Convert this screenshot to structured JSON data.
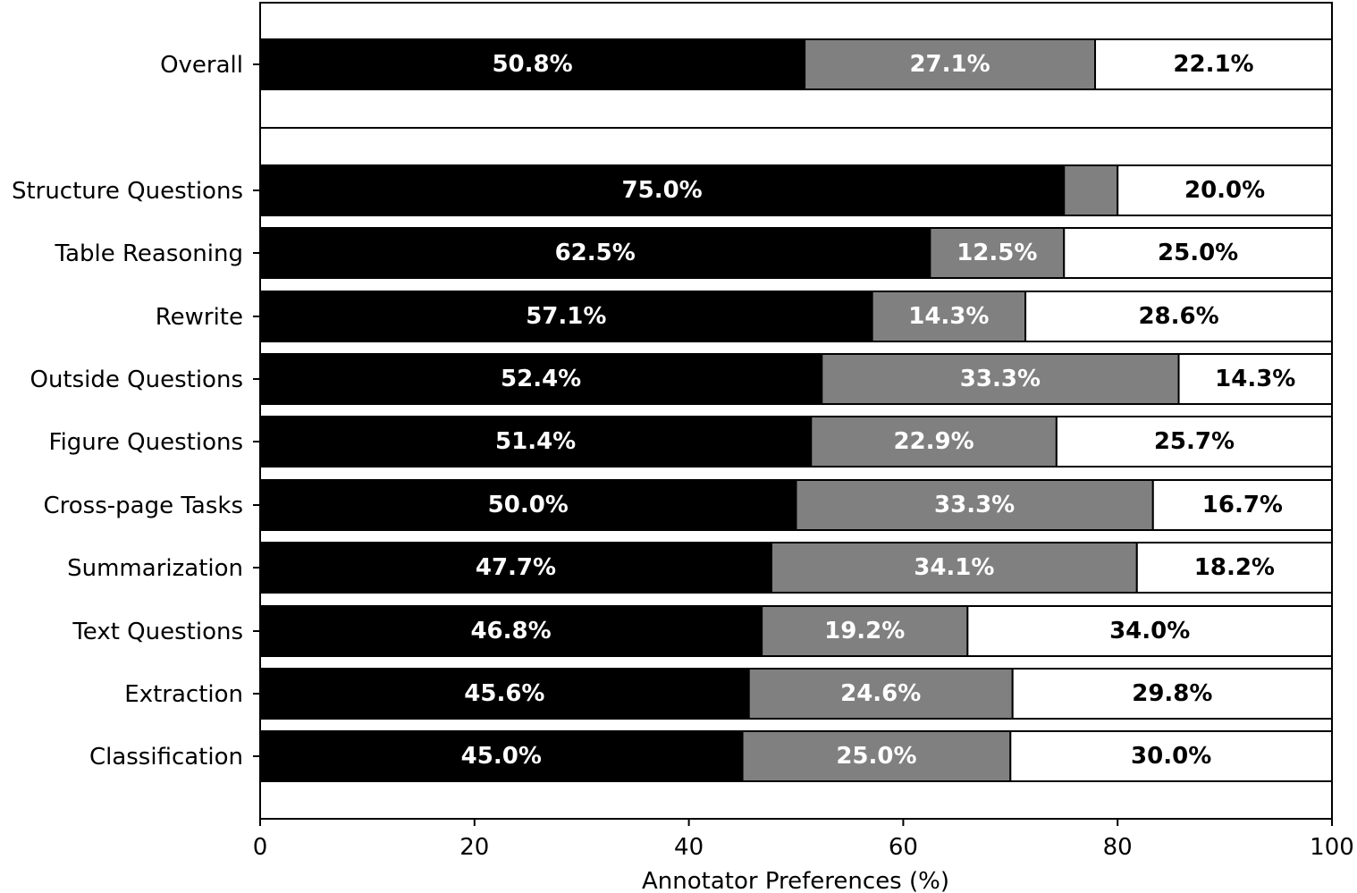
{
  "chart_data": {
    "type": "bar",
    "orientation": "horizontal",
    "stacked": true,
    "xlabel": "Annotator Preferences (%)",
    "xlim": [
      0,
      100
    ],
    "xticks": [
      0,
      20,
      40,
      60,
      80,
      100
    ],
    "grid": false,
    "legend": "none",
    "categories": [
      "Overall",
      "Structure Questions",
      "Table Reasoning",
      "Rewrite",
      "Outside Questions",
      "Figure Questions",
      "Cross-page Tasks",
      "Summarization",
      "Text Questions",
      "Extraction",
      "Classification"
    ],
    "series": [
      {
        "color": "#000000",
        "label_color": "#ffffff",
        "values": [
          50.8,
          75.0,
          62.5,
          57.1,
          52.4,
          51.4,
          50.0,
          47.7,
          46.8,
          45.6,
          45.0
        ],
        "labels": [
          "50.8%",
          "75.0%",
          "62.5%",
          "57.1%",
          "52.4%",
          "51.4%",
          "50.0%",
          "47.7%",
          "46.8%",
          "45.6%",
          "45.0%"
        ]
      },
      {
        "color": "#808080",
        "label_color": "#ffffff",
        "values": [
          27.1,
          5.0,
          12.5,
          14.3,
          33.3,
          22.9,
          33.3,
          34.1,
          19.2,
          24.6,
          25.0
        ],
        "labels": [
          "27.1%",
          "",
          "12.5%",
          "14.3%",
          "33.3%",
          "22.9%",
          "33.3%",
          "34.1%",
          "19.2%",
          "24.6%",
          "25.0%"
        ]
      },
      {
        "color": "#ffffff",
        "label_color": "#000000",
        "values": [
          22.1,
          20.0,
          25.0,
          28.6,
          14.3,
          25.7,
          16.7,
          18.2,
          34.0,
          29.8,
          30.0
        ],
        "labels": [
          "22.1%",
          "20.0%",
          "25.0%",
          "28.6%",
          "14.3%",
          "25.7%",
          "16.7%",
          "18.2%",
          "34.0%",
          "29.8%",
          "30.0%"
        ]
      }
    ]
  }
}
